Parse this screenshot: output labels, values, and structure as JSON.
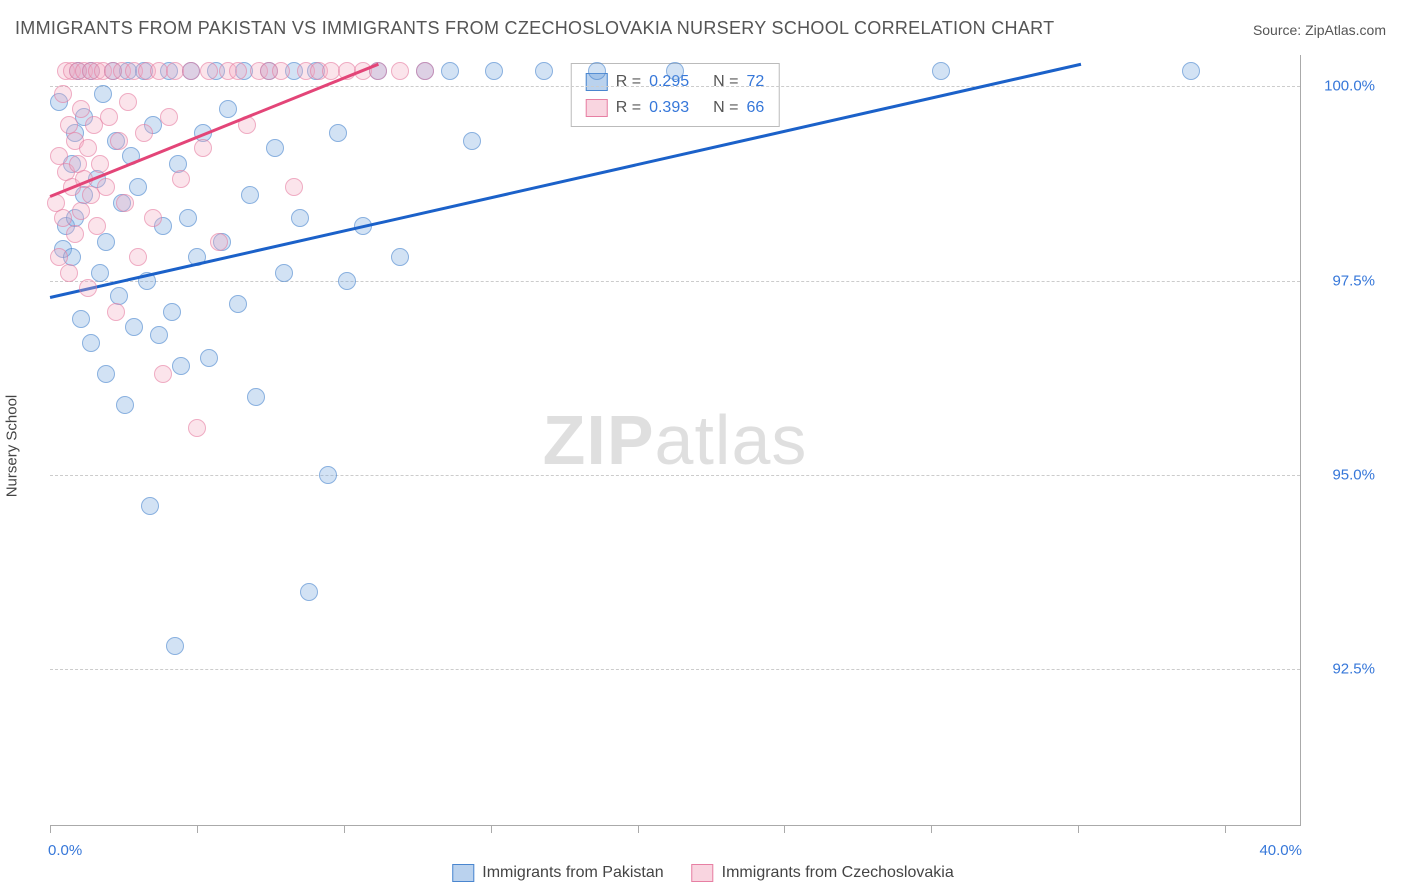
{
  "title": "IMMIGRANTS FROM PAKISTAN VS IMMIGRANTS FROM CZECHOSLOVAKIA NURSERY SCHOOL CORRELATION CHART",
  "source": "Source: ZipAtlas.com",
  "watermark": {
    "bold": "ZIP",
    "light": "atlas"
  },
  "chart": {
    "type": "scatter",
    "y_axis_title": "Nursery School",
    "xlim": [
      0.0,
      40.0
    ],
    "ylim": [
      90.5,
      100.4
    ],
    "x_tick_positions": [
      0,
      4.7,
      9.4,
      14.1,
      18.8,
      23.5,
      28.2,
      32.9,
      37.6
    ],
    "x_label_min": "0.0%",
    "x_label_max": "40.0%",
    "y_gridlines": [
      {
        "value": 92.5,
        "label": "92.5%"
      },
      {
        "value": 95.0,
        "label": "95.0%"
      },
      {
        "value": 97.5,
        "label": "97.5%"
      },
      {
        "value": 100.0,
        "label": "100.0%"
      }
    ],
    "grid_color": "#cccccc",
    "background_color": "#ffffff",
    "marker_size": 16,
    "series": [
      {
        "name": "Immigrants from Pakistan",
        "color_fill": "rgba(118,165,222,0.5)",
        "color_stroke": "#4a86cf",
        "regression_color": "#1b61c9",
        "regression": {
          "x1": 0.0,
          "y1": 97.3,
          "x2": 33.0,
          "y2": 100.3
        },
        "stats": {
          "R": "0.295",
          "N": "72"
        },
        "points": [
          [
            0.3,
            99.8
          ],
          [
            0.4,
            97.9
          ],
          [
            0.5,
            98.2
          ],
          [
            0.7,
            99.0
          ],
          [
            0.7,
            97.8
          ],
          [
            0.8,
            98.3
          ],
          [
            0.8,
            99.4
          ],
          [
            0.9,
            100.2
          ],
          [
            1.0,
            97.0
          ],
          [
            1.1,
            99.6
          ],
          [
            1.1,
            98.6
          ],
          [
            1.3,
            100.2
          ],
          [
            1.3,
            96.7
          ],
          [
            1.5,
            98.8
          ],
          [
            1.6,
            97.6
          ],
          [
            1.7,
            99.9
          ],
          [
            1.8,
            96.3
          ],
          [
            1.8,
            98.0
          ],
          [
            2.0,
            100.2
          ],
          [
            2.1,
            99.3
          ],
          [
            2.2,
            97.3
          ],
          [
            2.3,
            98.5
          ],
          [
            2.4,
            95.9
          ],
          [
            2.5,
            100.2
          ],
          [
            2.6,
            99.1
          ],
          [
            2.7,
            96.9
          ],
          [
            2.8,
            98.7
          ],
          [
            3.0,
            100.2
          ],
          [
            3.1,
            97.5
          ],
          [
            3.2,
            94.6
          ],
          [
            3.3,
            99.5
          ],
          [
            3.5,
            96.8
          ],
          [
            3.6,
            98.2
          ],
          [
            3.8,
            100.2
          ],
          [
            3.9,
            97.1
          ],
          [
            4.0,
            92.8
          ],
          [
            4.1,
            99.0
          ],
          [
            4.2,
            96.4
          ],
          [
            4.4,
            98.3
          ],
          [
            4.5,
            100.2
          ],
          [
            4.7,
            97.8
          ],
          [
            4.9,
            99.4
          ],
          [
            5.1,
            96.5
          ],
          [
            5.3,
            100.2
          ],
          [
            5.5,
            98.0
          ],
          [
            5.7,
            99.7
          ],
          [
            6.0,
            97.2
          ],
          [
            6.2,
            100.2
          ],
          [
            6.4,
            98.6
          ],
          [
            6.6,
            96.0
          ],
          [
            7.0,
            100.2
          ],
          [
            7.2,
            99.2
          ],
          [
            7.5,
            97.6
          ],
          [
            7.8,
            100.2
          ],
          [
            8.0,
            98.3
          ],
          [
            8.3,
            93.5
          ],
          [
            8.5,
            100.2
          ],
          [
            8.9,
            95.0
          ],
          [
            9.2,
            99.4
          ],
          [
            9.5,
            97.5
          ],
          [
            10.0,
            98.2
          ],
          [
            10.5,
            100.2
          ],
          [
            11.2,
            97.8
          ],
          [
            12.0,
            100.2
          ],
          [
            12.8,
            100.2
          ],
          [
            13.5,
            99.3
          ],
          [
            14.2,
            100.2
          ],
          [
            15.8,
            100.2
          ],
          [
            17.5,
            100.2
          ],
          [
            20.0,
            100.2
          ],
          [
            28.5,
            100.2
          ],
          [
            36.5,
            100.2
          ]
        ]
      },
      {
        "name": "Immigrants from Czechoslovakia",
        "color_fill": "rgba(244,172,193,0.5)",
        "color_stroke": "#e77fa3",
        "regression_color": "#e34578",
        "regression": {
          "x1": 0.0,
          "y1": 98.6,
          "x2": 10.5,
          "y2": 100.3
        },
        "stats": {
          "R": "0.393",
          "N": "66"
        },
        "points": [
          [
            0.2,
            98.5
          ],
          [
            0.3,
            99.1
          ],
          [
            0.3,
            97.8
          ],
          [
            0.4,
            99.9
          ],
          [
            0.4,
            98.3
          ],
          [
            0.5,
            100.2
          ],
          [
            0.5,
            98.9
          ],
          [
            0.6,
            99.5
          ],
          [
            0.6,
            97.6
          ],
          [
            0.7,
            100.2
          ],
          [
            0.7,
            98.7
          ],
          [
            0.8,
            99.3
          ],
          [
            0.8,
            98.1
          ],
          [
            0.9,
            100.2
          ],
          [
            0.9,
            99.0
          ],
          [
            1.0,
            98.4
          ],
          [
            1.0,
            99.7
          ],
          [
            1.1,
            100.2
          ],
          [
            1.1,
            98.8
          ],
          [
            1.2,
            99.2
          ],
          [
            1.2,
            97.4
          ],
          [
            1.3,
            100.2
          ],
          [
            1.3,
            98.6
          ],
          [
            1.4,
            99.5
          ],
          [
            1.5,
            100.2
          ],
          [
            1.5,
            98.2
          ],
          [
            1.6,
            99.0
          ],
          [
            1.7,
            100.2
          ],
          [
            1.8,
            98.7
          ],
          [
            1.9,
            99.6
          ],
          [
            2.0,
            100.2
          ],
          [
            2.1,
            97.1
          ],
          [
            2.2,
            99.3
          ],
          [
            2.3,
            100.2
          ],
          [
            2.4,
            98.5
          ],
          [
            2.5,
            99.8
          ],
          [
            2.7,
            100.2
          ],
          [
            2.8,
            97.8
          ],
          [
            3.0,
            99.4
          ],
          [
            3.1,
            100.2
          ],
          [
            3.3,
            98.3
          ],
          [
            3.5,
            100.2
          ],
          [
            3.6,
            96.3
          ],
          [
            3.8,
            99.6
          ],
          [
            4.0,
            100.2
          ],
          [
            4.2,
            98.8
          ],
          [
            4.5,
            100.2
          ],
          [
            4.7,
            95.6
          ],
          [
            4.9,
            99.2
          ],
          [
            5.1,
            100.2
          ],
          [
            5.4,
            98.0
          ],
          [
            5.7,
            100.2
          ],
          [
            6.0,
            100.2
          ],
          [
            6.3,
            99.5
          ],
          [
            6.7,
            100.2
          ],
          [
            7.0,
            100.2
          ],
          [
            7.4,
            100.2
          ],
          [
            7.8,
            98.7
          ],
          [
            8.2,
            100.2
          ],
          [
            8.6,
            100.2
          ],
          [
            9.0,
            100.2
          ],
          [
            9.5,
            100.2
          ],
          [
            10.0,
            100.2
          ],
          [
            10.5,
            100.2
          ],
          [
            11.2,
            100.2
          ],
          [
            12.0,
            100.2
          ]
        ]
      }
    ]
  },
  "legends": {
    "bottom": [
      {
        "series": 0,
        "label": "Immigrants from Pakistan"
      },
      {
        "series": 1,
        "label": "Immigrants from Czechoslovakia"
      }
    ]
  }
}
